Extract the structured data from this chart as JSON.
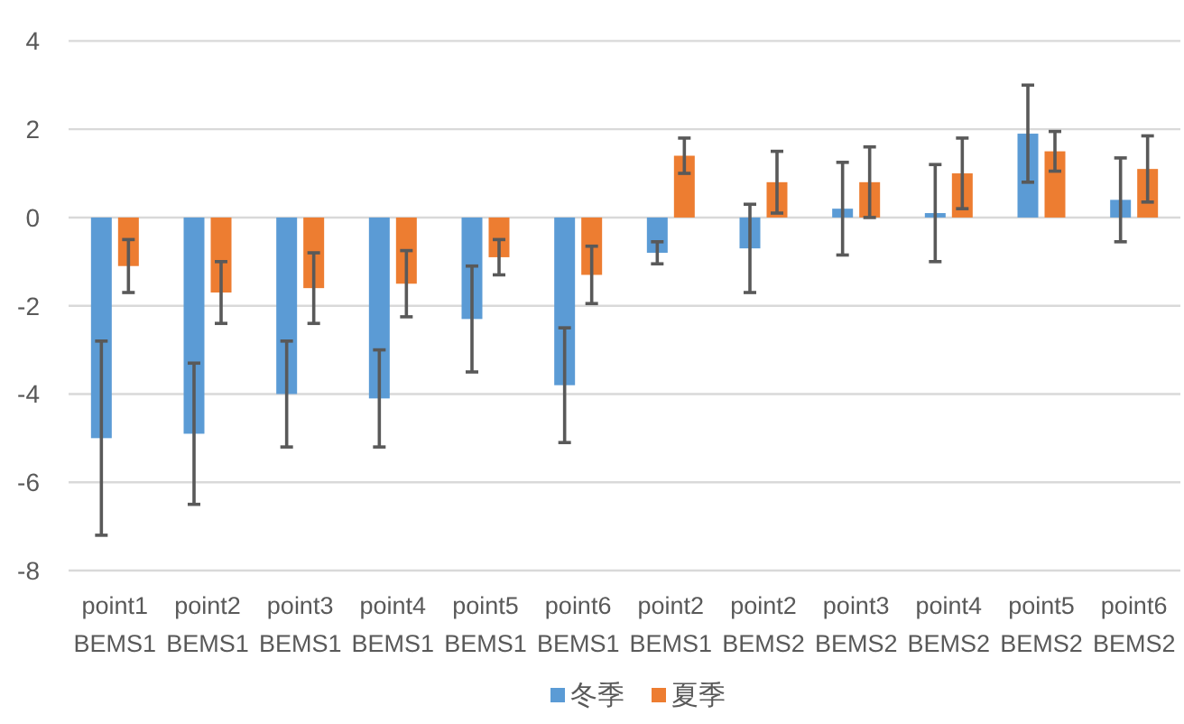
{
  "chart_data": {
    "type": "bar",
    "categories": [
      "point1 BEMS1",
      "point2 BEMS1",
      "point3 BEMS1",
      "point4 BEMS1",
      "point5 BEMS1",
      "point6 BEMS1",
      "point2 BEMS1",
      "point2 BEMS2",
      "point3 BEMS2",
      "point4 BEMS2",
      "point5 BEMS2",
      "point6 BEMS2"
    ],
    "series": [
      {
        "name": "冬季",
        "color": "#5b9bd5",
        "values": [
          -5.0,
          -4.9,
          -4.0,
          -4.1,
          -2.3,
          -3.8,
          -0.8,
          -0.7,
          0.2,
          0.1,
          1.9,
          0.4
        ],
        "errors": [
          2.2,
          1.6,
          1.2,
          1.1,
          1.2,
          1.3,
          0.25,
          1.0,
          1.05,
          1.1,
          1.1,
          0.95
        ]
      },
      {
        "name": "夏季",
        "color": "#ed7d31",
        "values": [
          -1.1,
          -1.7,
          -1.6,
          -1.5,
          -0.9,
          -1.3,
          1.4,
          0.8,
          0.8,
          1.0,
          1.5,
          1.1
        ],
        "errors": [
          0.6,
          0.7,
          0.8,
          0.75,
          0.4,
          0.65,
          0.4,
          0.7,
          0.8,
          0.8,
          0.45,
          0.75
        ]
      }
    ],
    "ylim": [
      -8,
      4
    ],
    "yticks": [
      -8,
      -6,
      -4,
      -2,
      0,
      2,
      4
    ],
    "grid": "y",
    "legend": "bottom"
  }
}
